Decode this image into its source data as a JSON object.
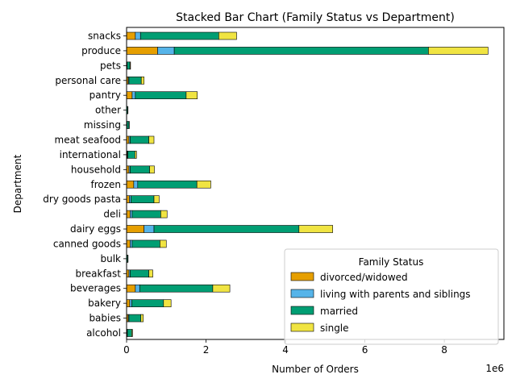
{
  "chart_data": {
    "type": "bar",
    "orientation": "horizontal",
    "stacked": true,
    "title": "Stacked Bar Chart (Family Status vs Department)",
    "xlabel": "Number of Orders",
    "ylabel": "Department",
    "x_offset_text": "1e6",
    "xlim": [
      0,
      9.5
    ],
    "xticks": [
      "0",
      "2",
      "4",
      "6",
      "8"
    ],
    "grid": false,
    "legend_title": "Family Status",
    "legend_placement": "lower right",
    "categories": [
      "alcohol",
      "babies",
      "bakery",
      "beverages",
      "breakfast",
      "bulk",
      "canned goods",
      "dairy eggs",
      "deli",
      "dry goods pasta",
      "frozen",
      "household",
      "international",
      "meat seafood",
      "missing",
      "other",
      "pantry",
      "personal care",
      "pets",
      "produce",
      "snacks"
    ],
    "series": [
      {
        "name": "divorced/widowed",
        "color": "#E69F00",
        "values": [
          0.01,
          0.04,
          0.08,
          0.22,
          0.06,
          0.004,
          0.09,
          0.44,
          0.09,
          0.07,
          0.18,
          0.06,
          0.02,
          0.06,
          0.007,
          0.003,
          0.14,
          0.04,
          0.01,
          0.78,
          0.22
        ]
      },
      {
        "name": "living with parents and siblings",
        "color": "#56B4E9",
        "values": [
          0.01,
          0.02,
          0.05,
          0.11,
          0.03,
          0.002,
          0.05,
          0.25,
          0.05,
          0.04,
          0.1,
          0.03,
          0.01,
          0.03,
          0.003,
          0.002,
          0.08,
          0.02,
          0.005,
          0.42,
          0.13
        ]
      },
      {
        "name": "married",
        "color": "#009E73",
        "values": [
          0.11,
          0.3,
          0.8,
          1.84,
          0.47,
          0.026,
          0.7,
          3.65,
          0.72,
          0.58,
          1.49,
          0.49,
          0.18,
          0.47,
          0.05,
          0.025,
          1.28,
          0.31,
          0.07,
          6.4,
          1.97
        ]
      },
      {
        "name": "single",
        "color": "#F0E442",
        "values": [
          0.02,
          0.06,
          0.19,
          0.43,
          0.1,
          0.006,
          0.16,
          0.85,
          0.16,
          0.13,
          0.35,
          0.12,
          0.04,
          0.13,
          0.01,
          0.006,
          0.28,
          0.07,
          0.015,
          1.5,
          0.45
        ]
      }
    ]
  }
}
